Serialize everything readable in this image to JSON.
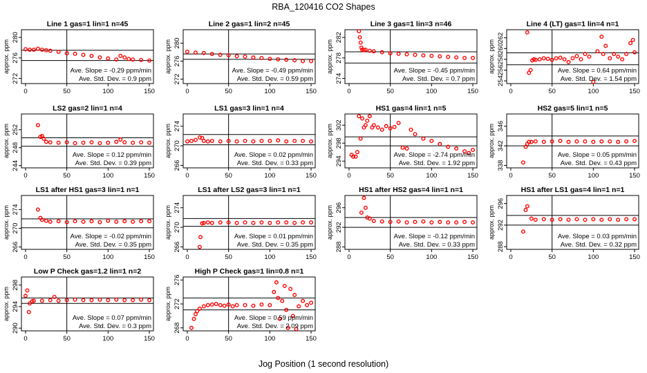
{
  "figure": {
    "title": "RBA_120416  CO2 Shapes",
    "xlabel": "Jog Position (1 second resolution)"
  },
  "chart_data": [
    {
      "type": "scatter",
      "title": "Line 1 gas=1 lin=1 n=45",
      "ylabel": "approx. ppm",
      "xlim": [
        -5,
        155
      ],
      "ylim": [
        271,
        281.5
      ],
      "yticks": [
        272,
        276,
        280
      ],
      "xticks": [
        0,
        50,
        100,
        150
      ],
      "refs": [
        277.5,
        275.5
      ],
      "vline": 50,
      "slope_text": "Ave. Slope = -0.29  ppm/min",
      "sd_text": "Ave. Std. Dev. = 0.9  ppm",
      "x": [
        0,
        5,
        10,
        15,
        20,
        25,
        30,
        40,
        50,
        60,
        70,
        80,
        90,
        100,
        110,
        115,
        120,
        125,
        130,
        140,
        150
      ],
      "y": [
        277.7,
        277.6,
        277.6,
        277.8,
        277.6,
        277.5,
        277.4,
        277.2,
        276.9,
        276.8,
        276.6,
        276.4,
        276.1,
        275.9,
        275.7,
        276.4,
        276.1,
        275.8,
        275.7,
        275.6,
        275.5
      ]
    },
    {
      "type": "scatter",
      "title": "Line 2 gas=1 lin=2 n=45",
      "ylabel": "approx. ppm",
      "xlim": [
        -5,
        155
      ],
      "ylim": [
        271,
        283
      ],
      "yticks": [
        272,
        276,
        280
      ],
      "xticks": [
        0,
        50,
        100,
        150
      ],
      "refs": [
        277.6,
        276.4
      ],
      "vline": 50,
      "slope_text": "Ave. Slope = -0.49  ppm/min",
      "sd_text": "Ave. Std. Dev. = 0.59  ppm",
      "x": [
        0,
        10,
        20,
        30,
        40,
        50,
        60,
        70,
        80,
        90,
        100,
        110,
        120,
        130,
        140,
        150
      ],
      "y": [
        278.1,
        277.9,
        277.8,
        277.6,
        277.4,
        277.3,
        277.1,
        277.0,
        276.8,
        276.7,
        276.5,
        276.4,
        276.3,
        276.2,
        276.0,
        276.0
      ]
    },
    {
      "type": "scatter",
      "title": "Line 3 gas=1 lin=3 n=46",
      "ylabel": "approx. ppm",
      "xlim": [
        -5,
        155
      ],
      "ylim": [
        273,
        283.5
      ],
      "yticks": [
        274,
        278,
        282
      ],
      "xticks": [
        0,
        50,
        100,
        150
      ],
      "refs": [
        279.2,
        277.0
      ],
      "vline": 50,
      "slope_text": "Ave. Slope = -0.45  ppm/min",
      "sd_text": "Ave. Std. Dev. = 0.7  ppm",
      "x": [
        12,
        13,
        14,
        15,
        16,
        18,
        20,
        25,
        30,
        40,
        50,
        60,
        70,
        80,
        90,
        100,
        110,
        120,
        130,
        140,
        150
      ],
      "y": [
        283.2,
        282.0,
        281.0,
        280.0,
        279.6,
        279.5,
        279.6,
        279.4,
        279.3,
        279.1,
        278.9,
        278.8,
        278.7,
        278.6,
        278.5,
        278.4,
        278.3,
        278.2,
        278.1,
        278.0,
        278.0
      ]
    },
    {
      "type": "scatter",
      "title": "Line 4 (LT) gas=1 lin=4 n=1",
      "ylabel": "approx. ppm",
      "xlim": [
        -5,
        155
      ],
      "ylim": [
        253.5,
        263.5
      ],
      "yticks": [
        254,
        256,
        258,
        260,
        262
      ],
      "xticks": [
        0,
        50,
        100,
        150
      ],
      "refs": [
        259.2,
        257.0
      ],
      "vline": 50,
      "slope_text": "Ave. Slope = 0.64  ppm/min",
      "sd_text": "Ave. Std. Dev. = 1.54  ppm",
      "x": [
        20,
        22,
        24,
        26,
        28,
        30,
        35,
        40,
        45,
        50,
        55,
        60,
        65,
        70,
        75,
        80,
        85,
        90,
        95,
        100,
        105,
        110,
        112,
        115,
        120,
        125,
        130,
        135,
        140,
        145,
        148,
        150
      ],
      "y": [
        263.0,
        255.5,
        256.0,
        257.8,
        258.0,
        257.9,
        258.0,
        258.2,
        258.1,
        257.9,
        258.2,
        258.3,
        258.0,
        257.5,
        258.2,
        258.6,
        258.0,
        259.0,
        258.5,
        253.8,
        259.5,
        262.2,
        259.0,
        260.5,
        258.2,
        259.0,
        258.5,
        258.0,
        259.0,
        261.0,
        261.6,
        259.3
      ]
    },
    {
      "type": "scatter",
      "title": "LS2 gas=2 lin=1 n=4",
      "ylabel": "approx. ppm",
      "xlim": [
        -5,
        155
      ],
      "ylim": [
        243.5,
        255.5
      ],
      "yticks": [
        244,
        248,
        252
      ],
      "xticks": [
        0,
        50,
        100,
        150
      ],
      "refs": [
        250.2,
        248.3
      ],
      "vline": 50,
      "slope_text": "Ave. Slope = 0.12  ppm/min",
      "sd_text": "Ave. Std. Dev. = 0.39  ppm",
      "x": [
        15,
        18,
        20,
        22,
        25,
        30,
        40,
        50,
        60,
        70,
        80,
        90,
        100,
        110,
        115,
        120,
        130,
        140,
        150
      ],
      "y": [
        253.0,
        250.4,
        250.6,
        250.0,
        249.3,
        249.2,
        249.1,
        249.2,
        249.0,
        249.1,
        249.2,
        249.0,
        249.1,
        249.3,
        249.8,
        249.2,
        249.1,
        249.2,
        249.1
      ]
    },
    {
      "type": "scatter",
      "title": "LS1 gas=3 lin=1 n=4",
      "ylabel": "approx. ppm",
      "xlim": [
        -5,
        155
      ],
      "ylim": [
        265.5,
        276.5
      ],
      "yticks": [
        266,
        270,
        274
      ],
      "xticks": [
        0,
        50,
        100,
        150
      ],
      "refs": [
        272.3,
        270.2
      ],
      "vline": 50,
      "slope_text": "Ave. Slope = 0.02  ppm/min",
      "sd_text": "Ave. Std. Dev. = 0.33  ppm",
      "x": [
        0,
        5,
        10,
        15,
        18,
        20,
        25,
        30,
        40,
        50,
        60,
        70,
        80,
        90,
        100,
        110,
        120,
        130,
        140,
        150
      ],
      "y": [
        270.9,
        271.0,
        271.2,
        271.7,
        271.6,
        271.0,
        270.9,
        271.0,
        270.9,
        271.0,
        270.9,
        271.0,
        270.9,
        271.0,
        271.0,
        271.1,
        270.9,
        271.0,
        271.0,
        270.9
      ]
    },
    {
      "type": "scatter",
      "title": "HS1 gas=4 lin=1 n=5",
      "ylabel": "approx. ppm",
      "xlim": [
        -5,
        155
      ],
      "ylim": [
        292.5,
        304.5
      ],
      "yticks": [
        294,
        298,
        302
      ],
      "xticks": [
        0,
        50,
        100,
        150
      ],
      "refs": [
        299.4,
        297.4
      ],
      "vline": 50,
      "slope_text": "Ave. Slope = -2.74  ppm/min",
      "sd_text": "Ave. Std. Dev. = 1.92  ppm",
      "x": [
        3,
        5,
        8,
        10,
        12,
        14,
        16,
        18,
        20,
        22,
        25,
        28,
        30,
        35,
        40,
        45,
        50,
        55,
        60,
        65,
        70,
        75,
        80,
        90,
        100,
        110,
        120,
        130,
        140,
        145,
        150
      ],
      "y": [
        295.4,
        295.0,
        295.0,
        296.0,
        304.0,
        299.0,
        303.5,
        301.5,
        302.0,
        303.0,
        304.0,
        301.5,
        302.0,
        301.5,
        301.0,
        301.8,
        301.3,
        301.6,
        302.5,
        297.0,
        296.8,
        301.0,
        300.0,
        299.0,
        298.5,
        297.8,
        297.2,
        296.8,
        296.2,
        295.8,
        296.5
      ]
    },
    {
      "type": "scatter",
      "title": "HS2 gas=5 lin=1 n=5",
      "ylabel": "approx. ppm",
      "xlim": [
        -5,
        155
      ],
      "ylim": [
        337.5,
        348.5
      ],
      "yticks": [
        338,
        342,
        346
      ],
      "xticks": [
        0,
        50,
        100,
        150
      ],
      "refs": [
        344.0,
        342.0
      ],
      "vline": 50,
      "slope_text": "Ave. Slope = 0.05  ppm/min",
      "sd_text": "Ave. Std. Dev. = 0.43  ppm",
      "x": [
        15,
        18,
        20,
        22,
        25,
        30,
        40,
        50,
        60,
        70,
        80,
        90,
        100,
        110,
        120,
        130,
        140,
        150
      ],
      "y": [
        338.6,
        341.8,
        342.4,
        342.8,
        342.8,
        342.9,
        342.8,
        342.9,
        343.0,
        342.8,
        342.9,
        342.9,
        342.8,
        342.9,
        342.9,
        342.8,
        342.9,
        343.0
      ]
    },
    {
      "type": "scatter",
      "title": "LS1 after HS1 gas=3 lin=1 n=1",
      "ylabel": "approx. ppm",
      "xlim": [
        -5,
        155
      ],
      "ylim": [
        265.5,
        277
      ],
      "yticks": [
        266,
        270,
        274
      ],
      "xticks": [
        0,
        50,
        100,
        150
      ],
      "refs": [
        272.0,
        270.1
      ],
      "vline": 50,
      "slope_text": "Ave. Slope = -0.02  ppm/min",
      "sd_text": "Ave. Std. Dev. = 0.35  ppm",
      "x": [
        15,
        18,
        20,
        25,
        30,
        40,
        50,
        60,
        70,
        80,
        90,
        100,
        110,
        120,
        130,
        140,
        150
      ],
      "y": [
        274.0,
        272.2,
        271.8,
        271.6,
        271.4,
        271.5,
        271.3,
        271.5,
        271.4,
        271.5,
        271.3,
        271.6,
        271.4,
        271.5,
        271.4,
        271.5,
        271.5
      ]
    },
    {
      "type": "scatter",
      "title": "LS1 after LS2 gas=3 lin=1 n=1",
      "ylabel": "approx. ppm",
      "xlim": [
        -5,
        155
      ],
      "ylim": [
        265.5,
        276.5
      ],
      "yticks": [
        266,
        270,
        274
      ],
      "xticks": [
        0,
        50,
        100,
        150
      ],
      "refs": [
        271.8,
        270.2
      ],
      "vline": 50,
      "slope_text": "Ave. Slope = 0.01  ppm/min",
      "sd_text": "Ave. Std. Dev. = 0.35  ppm",
      "x": [
        15,
        16,
        18,
        20,
        25,
        30,
        40,
        50,
        60,
        70,
        80,
        90,
        100,
        110,
        120,
        130,
        140,
        150
      ],
      "y": [
        266.0,
        268.0,
        270.8,
        270.9,
        271.0,
        270.9,
        271.0,
        271.0,
        270.9,
        271.0,
        270.9,
        271.0,
        270.9,
        271.0,
        271.0,
        270.9,
        271.0,
        271.0
      ]
    },
    {
      "type": "scatter",
      "title": "HS1 after HS2 gas=4 lin=1 n=1",
      "ylabel": "approx. ppm",
      "xlim": [
        -5,
        155
      ],
      "ylim": [
        287.5,
        298.5
      ],
      "yticks": [
        288,
        292,
        296
      ],
      "xticks": [
        0,
        50,
        100,
        150
      ],
      "refs": [
        294.0,
        292.0
      ],
      "vline": 50,
      "slope_text": "Ave. Slope = -0.12  ppm/min",
      "sd_text": "Ave. Std. Dev. = 0.33  ppm",
      "x": [
        15,
        18,
        20,
        22,
        25,
        30,
        40,
        50,
        60,
        70,
        80,
        90,
        100,
        110,
        120,
        130,
        140,
        150
      ],
      "y": [
        295.0,
        298.0,
        296.0,
        294.0,
        293.8,
        293.3,
        293.2,
        293.1,
        293.2,
        293.0,
        293.1,
        293.2,
        293.0,
        293.1,
        293.0,
        293.0,
        293.1,
        293.0
      ]
    },
    {
      "type": "scatter",
      "title": "HS1 after LS1 gas=4 lin=1 n=1",
      "ylabel": "approx. ppm",
      "xlim": [
        -5,
        155
      ],
      "ylim": [
        287.5,
        297.5
      ],
      "yticks": [
        288,
        292,
        296
      ],
      "xticks": [
        0,
        50,
        100,
        150
      ],
      "refs": [
        293.8,
        292.0
      ],
      "vline": 50,
      "slope_text": "Ave. Slope = 0.03  ppm/min",
      "sd_text": "Ave. Std. Dev. = 0.32  ppm",
      "x": [
        15,
        18,
        20,
        25,
        30,
        40,
        50,
        60,
        70,
        80,
        90,
        100,
        110,
        120,
        130,
        140,
        150
      ],
      "y": [
        290.8,
        294.8,
        295.5,
        293.2,
        293.0,
        293.1,
        293.0,
        293.1,
        293.0,
        293.1,
        293.0,
        293.1,
        293.0,
        293.1,
        293.0,
        293.1,
        293.1
      ]
    },
    {
      "type": "scatter",
      "title": "Low P Check gas=1.2 lin=1 n=2",
      "ylabel": "approx. ppm",
      "xlim": [
        -5,
        155
      ],
      "ylim": [
        289.5,
        299.5
      ],
      "yticks": [
        290,
        294,
        298
      ],
      "xticks": [
        0,
        50,
        100,
        150
      ],
      "refs": [
        295.6,
        294.6
      ],
      "vline": 50,
      "slope_text": "Ave. Slope = 0.07  ppm/min",
      "sd_text": "Ave. Std. Dev. = 0.3  ppm",
      "x": [
        0,
        2,
        4,
        5,
        8,
        10,
        20,
        30,
        35,
        40,
        50,
        60,
        70,
        80,
        90,
        100,
        110,
        120,
        130,
        140,
        150
      ],
      "y": [
        296.0,
        297.0,
        293.0,
        294.6,
        295.0,
        295.1,
        295.1,
        295.2,
        295.8,
        295.1,
        295.2,
        295.3,
        295.2,
        295.2,
        295.3,
        295.2,
        295.3,
        295.2,
        295.2,
        295.3,
        295.2
      ]
    },
    {
      "type": "scatter",
      "title": "High P Check gas=1 lin=0.8 n=1",
      "ylabel": "approx. ppm",
      "xlim": [
        -5,
        155
      ],
      "ylim": [
        267.5,
        276.5
      ],
      "yticks": [
        268,
        272,
        276
      ],
      "xticks": [
        0,
        50,
        100,
        150
      ],
      "refs": [
        273.0,
        271.0
      ],
      "vline": 50,
      "slope_text": "Ave. Slope = 0.59  ppm/min",
      "sd_text": "Ave. Std. Dev. = 2.09  ppm",
      "x": [
        5,
        8,
        10,
        12,
        15,
        20,
        25,
        30,
        35,
        40,
        45,
        50,
        55,
        60,
        70,
        80,
        90,
        100,
        105,
        108,
        110,
        112,
        115,
        118,
        120,
        122,
        125,
        128,
        130,
        132,
        135,
        140,
        145,
        150
      ],
      "y": [
        268.0,
        269.5,
        270.3,
        270.8,
        271.2,
        271.6,
        271.8,
        271.9,
        272.0,
        271.8,
        271.7,
        271.9,
        271.6,
        271.8,
        271.8,
        271.7,
        271.9,
        271.8,
        274.0,
        275.6,
        273.0,
        269.5,
        272.5,
        275.0,
        271.0,
        268.0,
        274.5,
        270.0,
        273.5,
        267.8,
        271.6,
        272.5,
        271.8,
        272.2
      ]
    }
  ]
}
